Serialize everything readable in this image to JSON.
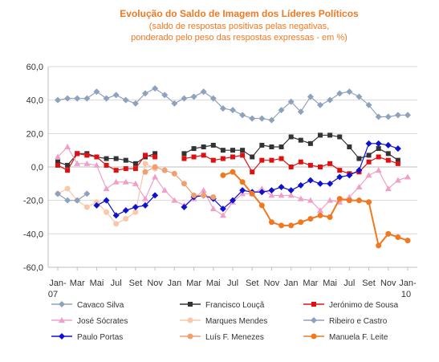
{
  "chart_data": {
    "type": "line",
    "title": "Evolução do Saldo  de Imagem dos Líderes Políticos",
    "subtitle": [
      "(saldo de respostas positivas pelas negativas,",
      "ponderado pelo peso das respostas expressas - em %)"
    ],
    "ylim": [
      -60,
      60
    ],
    "y_ticks": [
      "60,0",
      "40,0",
      "20,0",
      "0,0",
      "-20,0",
      "-40,0",
      "-60,0"
    ],
    "x_ticks": [
      "Jan-",
      "Mar",
      "Mai",
      "Jul",
      "Set",
      "Nov",
      "Jan",
      "Mar",
      "Mai",
      "Jul",
      "Set",
      "Nov",
      "Jan",
      "Mar",
      "Mai",
      "Jul",
      "Set",
      "Nov",
      "Jan-"
    ],
    "x_ticks_line2": {
      "first": "07",
      "last": "10"
    },
    "grid": "horizontal",
    "legend_position": "bottom",
    "series": [
      {
        "name": "Cavaco Silva",
        "color": "#8fa2bd",
        "marker": "diamond",
        "values": [
          40,
          41,
          41,
          41,
          45,
          41,
          43,
          40,
          38,
          44,
          47,
          43,
          38,
          41,
          42,
          45,
          41,
          35,
          34,
          31,
          29,
          29,
          28,
          34,
          39,
          33,
          42,
          37,
          40,
          44,
          45,
          42,
          37,
          30,
          30,
          31,
          31
        ]
      },
      {
        "name": "Francisco Louçã",
        "color": "#333333",
        "marker": "square",
        "values": [
          3,
          1,
          8,
          8,
          6,
          5,
          5,
          4,
          2,
          6,
          8,
          null,
          null,
          8,
          11,
          12,
          13,
          10,
          10,
          10,
          6,
          13,
          12,
          12,
          18,
          16,
          14,
          19,
          19,
          18,
          12,
          5,
          7,
          11,
          8,
          4,
          null
        ]
      },
      {
        "name": "Jerónimo de Sousa",
        "color": "#e01010",
        "marker": "square",
        "values": [
          1,
          -2,
          8,
          7,
          6,
          1,
          -2,
          -1,
          -1,
          7,
          6,
          null,
          null,
          5,
          6,
          7,
          4,
          5,
          6,
          7,
          -3,
          4,
          4,
          5,
          0,
          3,
          1,
          0,
          2,
          -2,
          -4,
          -3,
          3,
          6,
          4,
          2,
          null
        ]
      },
      {
        "name": "José Sócrates",
        "color": "#f0a0c8",
        "marker": "triangle",
        "values": [
          6,
          12,
          2,
          2,
          1,
          -13,
          -9,
          -9,
          -10,
          -19,
          -6,
          -14,
          -20,
          -23,
          -19,
          -14,
          -25,
          -29,
          -21,
          -16,
          -16,
          -13,
          -17,
          -17,
          -17,
          -19,
          -20,
          -26,
          -20,
          -21,
          -18,
          -12,
          -5,
          -2,
          -13,
          -8,
          -6
        ]
      },
      {
        "name": "Marques Mendes",
        "color": "#f8c8a8",
        "marker": "circle",
        "values": [
          -16,
          -13,
          -20,
          -24,
          -21,
          -27,
          -34,
          -31,
          -27,
          2,
          -1,
          null,
          null,
          null,
          null,
          null,
          null,
          null,
          null,
          null,
          null,
          null,
          null,
          null,
          null,
          null,
          null,
          null,
          null,
          null,
          null,
          null,
          null,
          null,
          null,
          null,
          null
        ]
      },
      {
        "name": "Ribeiro e Castro",
        "color": "#8fa2bd",
        "marker": "diamond",
        "values": [
          -16,
          -20,
          -20,
          -16,
          null,
          null,
          null,
          null,
          null,
          null,
          null,
          null,
          null,
          null,
          null,
          null,
          null,
          null,
          null,
          null,
          null,
          null,
          null,
          null,
          null,
          null,
          null,
          null,
          null,
          null,
          null,
          null,
          null,
          null,
          null,
          null,
          null
        ]
      },
      {
        "name": "Paulo Portas",
        "color": "#1010d0",
        "marker": "diamond",
        "values": [
          null,
          null,
          null,
          null,
          -23,
          -20,
          -29,
          -26,
          -24,
          -23,
          -17,
          null,
          null,
          -24,
          -18,
          -17,
          -19,
          -25,
          -20,
          -14,
          -15,
          -15,
          -14,
          -12,
          -14,
          -11,
          -8,
          -10,
          -10,
          -6,
          -5,
          -2,
          14,
          14,
          13,
          11,
          null
        ]
      },
      {
        "name": "Luís F. Menezes",
        "color": "#f0a070",
        "marker": "circle",
        "values": [
          null,
          null,
          null,
          null,
          null,
          null,
          null,
          null,
          null,
          -3,
          0,
          -2,
          -4,
          -10,
          -17,
          -17,
          -18,
          null,
          null,
          null,
          null,
          null,
          null,
          null,
          null,
          null,
          null,
          null,
          null,
          null,
          null,
          null,
          null,
          null,
          null,
          null,
          null
        ]
      },
      {
        "name": "Manuela F. Leite",
        "color": "#f07820",
        "marker": "circle",
        "values": [
          null,
          null,
          null,
          null,
          null,
          null,
          null,
          null,
          null,
          null,
          null,
          null,
          null,
          null,
          null,
          null,
          null,
          -5,
          -3,
          -9,
          -16,
          -23,
          -33,
          -35,
          -35,
          -33,
          -31,
          -29,
          -30,
          -19,
          -20,
          -20,
          -21,
          -47,
          -40,
          -42,
          -44
        ]
      }
    ]
  }
}
